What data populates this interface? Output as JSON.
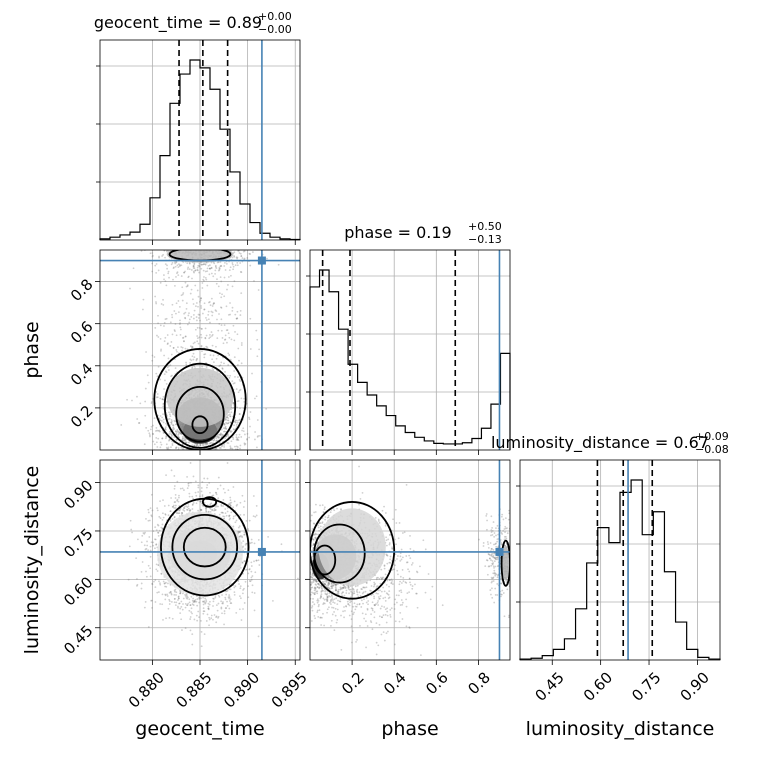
{
  "chart_data": {
    "type": "corner",
    "parameters": [
      {
        "name": "geocent_time",
        "label": "geocent_time",
        "range": [
          0.8745,
          0.8955
        ],
        "ticks": [
          0.88,
          0.885,
          0.89,
          0.895
        ],
        "tick_labels": [
          "0.880",
          "0.885",
          "0.890",
          "0.895"
        ],
        "median": 0.89,
        "quantiles": [
          0.8828,
          0.8853,
          0.8879
        ],
        "truth": 0.8915,
        "title": "geocent_time = 0.89",
        "title_plus": "+0.00",
        "title_minus": "−0.00",
        "hist_counts": [
          2,
          5,
          9,
          14,
          28,
          75,
          150,
          243,
          295,
          320,
          306,
          268,
          197,
          121,
          64,
          31,
          12,
          5,
          2,
          1
        ]
      },
      {
        "name": "phase",
        "label": "phase",
        "range": [
          0.0,
          0.95
        ],
        "ticks": [
          0.2,
          0.4,
          0.6,
          0.8
        ],
        "tick_labels": [
          "0.2",
          "0.4",
          "0.6",
          "0.8"
        ],
        "median": 0.19,
        "quantiles": [
          0.06,
          0.19,
          0.69
        ],
        "truth": 0.9,
        "title": "phase = 0.19",
        "title_plus": "+0.50",
        "title_minus": "−0.13",
        "hist_counts": [
          270,
          298,
          262,
          200,
          142,
          112,
          91,
          73,
          57,
          40,
          29,
          21,
          15,
          11,
          10,
          10,
          12,
          19,
          36,
          76,
          160
        ]
      },
      {
        "name": "luminosity_distance",
        "label": "luminosity_distance",
        "range": [
          0.35,
          0.97
        ],
        "ticks": [
          0.45,
          0.6,
          0.75,
          0.9
        ],
        "tick_labels": [
          "0.45",
          "0.60",
          "0.75",
          "0.90"
        ],
        "median": 0.67,
        "quantiles": [
          0.59,
          0.67,
          0.76
        ],
        "truth": 0.685,
        "title": "luminosity_distance = 0.67",
        "title_plus": "+0.09",
        "title_minus": "−0.08",
        "hist_counts": [
          1,
          2,
          5,
          12,
          24,
          58,
          110,
          150,
          133,
          190,
          204,
          142,
          168,
          100,
          43,
          12,
          3,
          1
        ]
      }
    ],
    "grid": true,
    "colors": {
      "truth": "#4682b4",
      "hist": "#000000",
      "contour": "#000000",
      "scatter": "#777777"
    }
  }
}
